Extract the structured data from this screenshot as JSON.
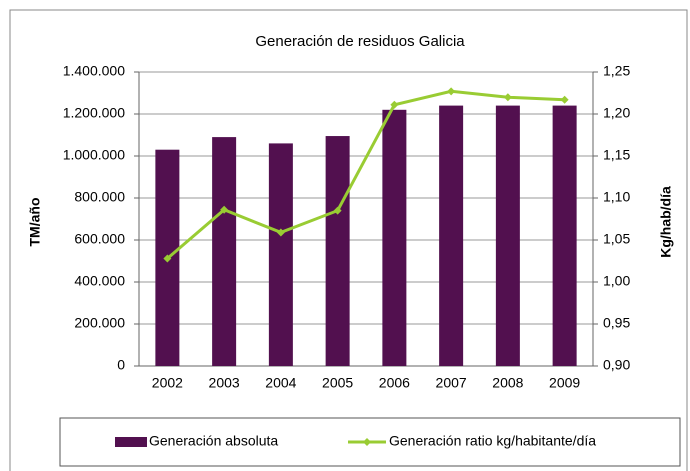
{
  "chart_data": {
    "type": "combo",
    "title": "Generación de residuos Galicia",
    "y_label": "TM/año",
    "y2_label": "Kg/hab/día",
    "categories": [
      "2002",
      "2003",
      "2004",
      "2005",
      "2006",
      "2007",
      "2008",
      "2009"
    ],
    "series": [
      {
        "name": "Generación absoluta",
        "type": "bar",
        "color": "#52104f",
        "values": [
          1030000,
          1090000,
          1060000,
          1095000,
          1220000,
          1240000,
          1240000,
          1240000
        ]
      },
      {
        "name": "Generación ratio kg/habitante/día",
        "type": "line",
        "axis": "y2",
        "color": "#99cc33",
        "values": [
          1.028,
          1.086,
          1.059,
          1.085,
          1.211,
          1.227,
          1.22,
          1.217
        ]
      }
    ],
    "ylim": [
      0,
      1400000
    ],
    "yticks": [
      0,
      {
        "value": 200000,
        "label": "200.000"
      },
      {
        "value": 400000,
        "label": "400.000"
      },
      {
        "value": 600000,
        "label": "600.000"
      },
      {
        "value": 800000,
        "label": "800.000"
      },
      {
        "value": 1000000,
        "label": "1.000.000"
      },
      {
        "value": 1200000,
        "label": "1.200.000"
      },
      {
        "value": 1400000,
        "label": "1.400.000"
      }
    ],
    "y2lim": [
      0.9,
      1.25
    ],
    "y2ticks": [
      {
        "value": 0.9,
        "label": "0,90"
      },
      {
        "value": 0.95,
        "label": "0,95"
      },
      {
        "value": 1.0,
        "label": "1,00"
      },
      {
        "value": 1.05,
        "label": "1,05"
      },
      {
        "value": 1.1,
        "label": "1,10"
      },
      {
        "value": 1.15,
        "label": "1,15"
      },
      {
        "value": 1.2,
        "label": "1,20"
      },
      {
        "value": 1.25,
        "label": "1,25"
      }
    ],
    "grid": true,
    "legend": "bottom"
  }
}
